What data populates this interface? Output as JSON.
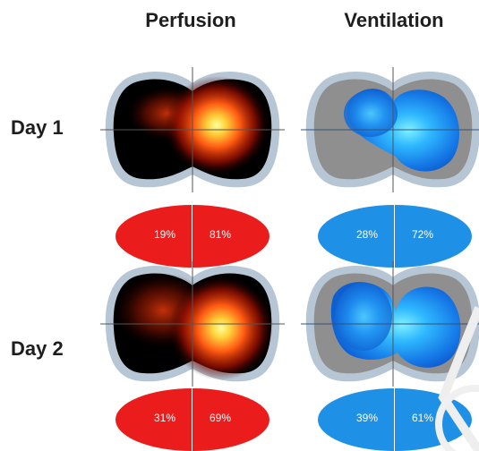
{
  "columns": {
    "perfusion": "Perfusion",
    "ventilation": "Ventilation"
  },
  "rows": {
    "day1": "Day 1",
    "day2": "Day 2"
  },
  "day1": {
    "perfusion": {
      "left": "19%",
      "right": "81%"
    },
    "ventilation": {
      "left": "28%",
      "right": "72%"
    }
  },
  "day2": {
    "perfusion": {
      "left": "31%",
      "right": "69%"
    },
    "ventilation": {
      "left": "39%",
      "right": "61%"
    }
  },
  "colors": {
    "perfusion_oval": "#ea1c1c",
    "ventilation_oval": "#1e90e6",
    "thorax_outline": "#b7c6d4",
    "thorax_fill_ventilation": "#8f8f8f"
  }
}
